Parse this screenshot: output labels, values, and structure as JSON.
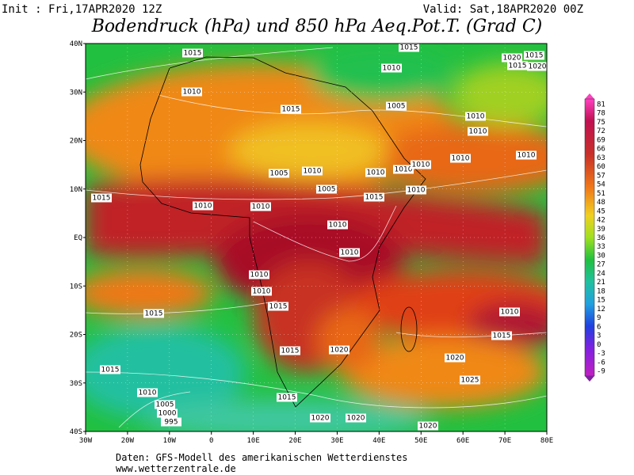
{
  "header": {
    "init": "Init : Fri,17APR2020 12Z",
    "valid": "Valid: Sat,18APR2020 00Z",
    "title": "Bodendruck (hPa) und 850 hPa Aeq.Pot.T. (Grad C)"
  },
  "map": {
    "lon_labels": [
      "30W",
      "20W",
      "10W",
      "0",
      "10E",
      "20E",
      "30E",
      "40E",
      "50E",
      "60E",
      "70E",
      "80E"
    ],
    "lat_labels": [
      "40N",
      "30N",
      "20N",
      "10N",
      "EQ",
      "10S",
      "20S",
      "30S",
      "40S"
    ],
    "isobar_labels": [
      "1015",
      "1015",
      "1020",
      "1015",
      "1015",
      "1020",
      "1010",
      "1010",
      "1015",
      "1005",
      "1010",
      "1010",
      "1010",
      "1010",
      "1005",
      "1010",
      "1010",
      "1010",
      "1010",
      "1010",
      "1005",
      "1015",
      "1015",
      "1010",
      "1010",
      "1010",
      "1010",
      "1010",
      "1010",
      "1015",
      "1015",
      "1010",
      "1015",
      "1015",
      "1020",
      "1020",
      "1015",
      "1025",
      "1010",
      "1015",
      "1005",
      "1000",
      "995",
      "1020",
      "1020",
      "1020"
    ]
  },
  "colorbar": {
    "labels": [
      81,
      78,
      75,
      72,
      69,
      66,
      63,
      60,
      57,
      54,
      51,
      48,
      45,
      42,
      39,
      36,
      33,
      30,
      27,
      24,
      21,
      18,
      15,
      12,
      9,
      6,
      3,
      0,
      -3,
      -6,
      -9
    ]
  },
  "footer": {
    "source": "Daten: GFS-Modell des amerikanischen Wetterdienstes",
    "url": "www.wetterzentrale.de"
  }
}
